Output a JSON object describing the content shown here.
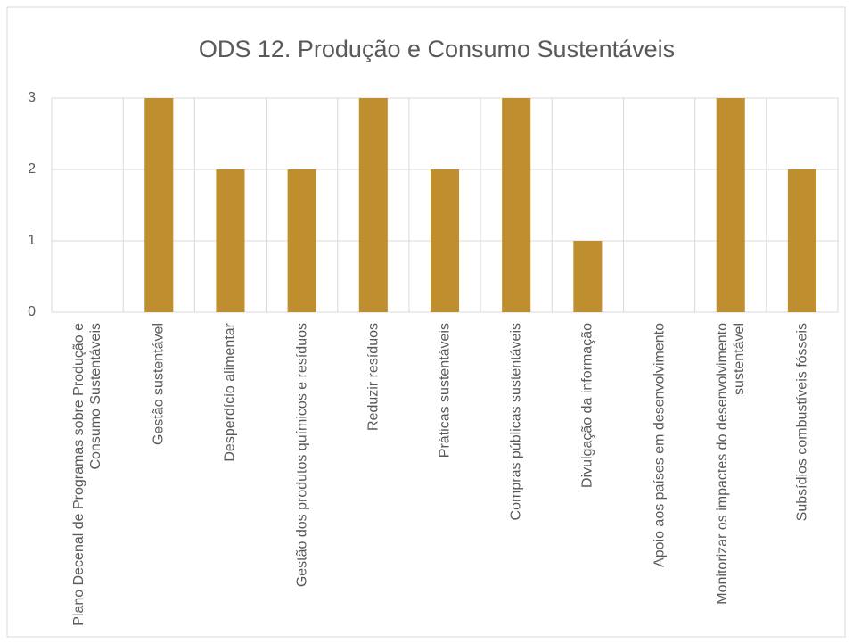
{
  "chart_data": {
    "type": "bar",
    "title": "ODS 12. Produção e Consumo Sustentáveis",
    "categories": [
      "Plano Decenal de Programas sobre Produção e Consumo Sustentáveis",
      "Gestão sustentável",
      "Desperdício alimentar",
      "Gestão dos produtos químicos e resíduos",
      "Reduzir resíduos",
      "Práticas sustentáveis",
      "Compras públicas sustentáveis",
      "Divulgação da informação",
      "Apoio aos países em desenvolvimento",
      "Monitorizar os impactes do desenvolvimento sustentável",
      "Subsídios combustíveis fósseis"
    ],
    "values": [
      0,
      3,
      2,
      2,
      3,
      2,
      3,
      1,
      0,
      3,
      2
    ],
    "color": "#bf8f2f",
    "ylim": [
      0,
      3
    ],
    "yticks": [
      0,
      1,
      2,
      3
    ],
    "grid": true
  }
}
